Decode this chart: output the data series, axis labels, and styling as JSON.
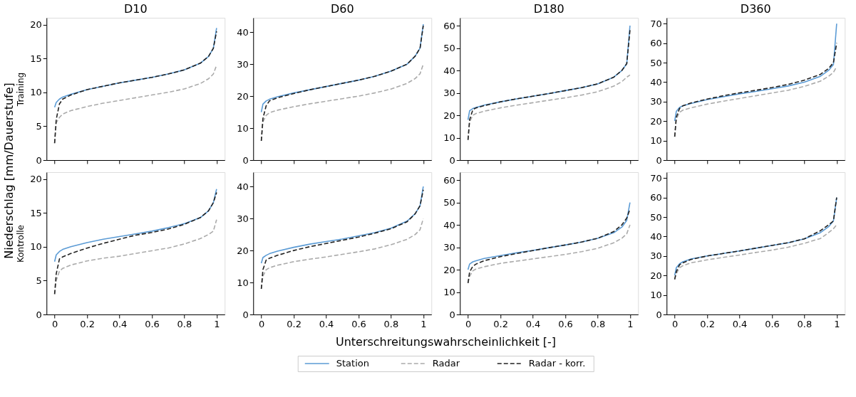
{
  "chart_data": [
    {
      "type": "line",
      "title": "D10",
      "ylabel": "Training",
      "annotations": [
        "Niederschlag [mm/Dauerstufe]",
        "Unterschreitungswahrscheinlichkeit [-]"
      ],
      "legend": "bottom",
      "tick_labels": "y",
      "x": [
        0,
        0.01,
        0.03,
        0.05,
        0.1,
        0.2,
        0.3,
        0.4,
        0.5,
        0.6,
        0.7,
        0.8,
        0.9,
        0.95,
        0.98,
        1
      ],
      "xlim": [
        -0.05,
        1.05
      ],
      "xticks": [
        0,
        0.2,
        0.4,
        0.6,
        0.8,
        1
      ],
      "ylim": [
        0,
        21
      ],
      "yticks": [
        0,
        5,
        10,
        15,
        20
      ],
      "series": [
        {
          "name": "Station",
          "color": "#5b9bd5",
          "line_style": "solid",
          "values": [
            7.8,
            8.5,
            9.0,
            9.3,
            9.7,
            10.4,
            10.9,
            11.4,
            11.8,
            12.2,
            12.7,
            13.3,
            14.3,
            15.3,
            16.5,
            19.5
          ]
        },
        {
          "name": "Radar",
          "color": "#aaaaaa",
          "line_style": "dashed",
          "values": [
            2.5,
            5.5,
            6.3,
            6.8,
            7.3,
            7.9,
            8.4,
            8.8,
            9.2,
            9.6,
            10.0,
            10.5,
            11.3,
            12.0,
            12.7,
            14.0
          ]
        },
        {
          "name": "Radar - korr.",
          "color": "#222222",
          "line_style": "dashed",
          "values": [
            2.5,
            6.0,
            8.3,
            9.0,
            9.6,
            10.4,
            10.9,
            11.4,
            11.8,
            12.2,
            12.7,
            13.3,
            14.3,
            15.3,
            16.5,
            19.0
          ]
        }
      ]
    },
    {
      "type": "line",
      "title": "D60",
      "tick_labels": "y",
      "x": [
        0,
        0.01,
        0.03,
        0.05,
        0.1,
        0.2,
        0.3,
        0.4,
        0.5,
        0.6,
        0.7,
        0.8,
        0.9,
        0.95,
        0.98,
        1
      ],
      "xlim": [
        -0.05,
        1.05
      ],
      "xticks": [
        0,
        0.2,
        0.4,
        0.6,
        0.8,
        1
      ],
      "ylim": [
        0,
        44.5
      ],
      "yticks": [
        0,
        10,
        20,
        30,
        40
      ],
      "series": [
        {
          "name": "Station",
          "color": "#5b9bd5",
          "line_style": "solid",
          "values": [
            15,
            17.5,
            18.5,
            19.0,
            19.8,
            21.0,
            22.0,
            23.0,
            24.0,
            25.0,
            26.2,
            27.8,
            30.0,
            32.5,
            35,
            42.5
          ]
        },
        {
          "name": "Radar",
          "color": "#aaaaaa",
          "line_style": "dashed",
          "values": [
            6,
            12,
            14,
            14.8,
            15.6,
            16.7,
            17.6,
            18.4,
            19.2,
            20.0,
            21.0,
            22.2,
            24.0,
            25.5,
            27,
            30
          ]
        },
        {
          "name": "Radar - korr.",
          "color": "#222222",
          "line_style": "dashed",
          "values": [
            6,
            13,
            17,
            18.5,
            19.5,
            20.8,
            22.0,
            23.0,
            24.0,
            25.0,
            26.2,
            27.8,
            30.0,
            32.5,
            35,
            42
          ]
        }
      ]
    },
    {
      "type": "line",
      "title": "D180",
      "tick_labels": "y",
      "x": [
        0,
        0.01,
        0.03,
        0.05,
        0.1,
        0.2,
        0.3,
        0.4,
        0.5,
        0.6,
        0.7,
        0.8,
        0.9,
        0.95,
        0.98,
        1
      ],
      "xlim": [
        -0.05,
        1.05
      ],
      "xticks": [
        0,
        0.2,
        0.4,
        0.6,
        0.8,
        1
      ],
      "ylim": [
        0,
        63.5
      ],
      "yticks": [
        0,
        10,
        20,
        30,
        40,
        50,
        60
      ],
      "series": [
        {
          "name": "Station",
          "color": "#5b9bd5",
          "line_style": "solid",
          "values": [
            18,
            22,
            23,
            23.5,
            24.5,
            26.0,
            27.3,
            28.5,
            29.7,
            31.0,
            32.3,
            34,
            37,
            40,
            43,
            60
          ]
        },
        {
          "name": "Radar",
          "color": "#aaaaaa",
          "line_style": "dashed",
          "values": [
            9,
            17,
            20,
            20.8,
            21.8,
            23.3,
            24.5,
            25.6,
            26.7,
            27.8,
            29.0,
            30.5,
            33,
            35,
            37,
            38
          ]
        },
        {
          "name": "Radar - korr.",
          "color": "#222222",
          "line_style": "dashed",
          "values": [
            9,
            18,
            22.5,
            23.3,
            24.3,
            26.0,
            27.3,
            28.5,
            29.7,
            31.0,
            32.3,
            34,
            37,
            40,
            43,
            58
          ]
        }
      ]
    },
    {
      "type": "line",
      "title": "D360",
      "tick_labels": "y",
      "x": [
        0,
        0.01,
        0.03,
        0.05,
        0.1,
        0.2,
        0.3,
        0.4,
        0.5,
        0.6,
        0.7,
        0.8,
        0.9,
        0.95,
        0.98,
        1
      ],
      "xlim": [
        -0.05,
        1.05
      ],
      "xticks": [
        0,
        0.2,
        0.4,
        0.6,
        0.8,
        1
      ],
      "ylim": [
        0,
        73
      ],
      "yticks": [
        0,
        10,
        20,
        30,
        40,
        50,
        60,
        70
      ],
      "series": [
        {
          "name": "Station",
          "color": "#5b9bd5",
          "line_style": "solid",
          "values": [
            20,
            25,
            27,
            27.8,
            29,
            31,
            32.5,
            34,
            35.2,
            36.6,
            38,
            40,
            43,
            46,
            49,
            70
          ]
        },
        {
          "name": "Radar",
          "color": "#aaaaaa",
          "line_style": "dashed",
          "values": [
            12,
            21,
            24.5,
            25.6,
            26.8,
            28.7,
            30.2,
            31.6,
            33,
            34.4,
            35.8,
            37.8,
            40.5,
            43,
            45,
            48
          ]
        },
        {
          "name": "Radar - korr.",
          "color": "#222222",
          "line_style": "dashed",
          "values": [
            12,
            22,
            26.5,
            27.8,
            29.3,
            31.3,
            33,
            34.5,
            35.8,
            37.2,
            38.8,
            41,
            44,
            47,
            50,
            60
          ]
        }
      ]
    },
    {
      "type": "line",
      "ylabel": "Kontrolle",
      "x": [
        0,
        0.01,
        0.03,
        0.05,
        0.1,
        0.2,
        0.3,
        0.4,
        0.5,
        0.6,
        0.7,
        0.8,
        0.9,
        0.95,
        0.98,
        1
      ],
      "xlim": [
        -0.05,
        1.05
      ],
      "xticks": [
        0,
        0.2,
        0.4,
        0.6,
        0.8,
        1
      ],
      "ylim": [
        0,
        21
      ],
      "yticks": [
        0,
        5,
        10,
        15,
        20
      ],
      "series": [
        {
          "name": "Station",
          "color": "#5b9bd5",
          "line_style": "solid",
          "values": [
            7.8,
            8.8,
            9.3,
            9.6,
            10.0,
            10.6,
            11.1,
            11.5,
            11.9,
            12.3,
            12.8,
            13.4,
            14.3,
            15.3,
            16.5,
            18.5
          ]
        },
        {
          "name": "Radar",
          "color": "#aaaaaa",
          "line_style": "dashed",
          "values": [
            3,
            5,
            6.4,
            6.8,
            7.3,
            7.9,
            8.3,
            8.6,
            9.0,
            9.4,
            9.8,
            10.4,
            11.2,
            11.8,
            12.3,
            14.0
          ]
        },
        {
          "name": "Radar - korr.",
          "color": "#222222",
          "line_style": "dashed",
          "values": [
            3,
            6,
            8.2,
            8.5,
            9.0,
            9.8,
            10.5,
            11.1,
            11.7,
            12.1,
            12.6,
            13.3,
            14.3,
            15.3,
            16.5,
            18.0
          ]
        }
      ]
    },
    {
      "type": "line",
      "x": [
        0,
        0.01,
        0.03,
        0.05,
        0.1,
        0.2,
        0.3,
        0.4,
        0.5,
        0.6,
        0.7,
        0.8,
        0.9,
        0.95,
        0.98,
        1
      ],
      "xlim": [
        -0.05,
        1.05
      ],
      "xticks": [
        0,
        0.2,
        0.4,
        0.6,
        0.8,
        1
      ],
      "ylim": [
        0,
        44.5
      ],
      "yticks": [
        0,
        10,
        20,
        30,
        40
      ],
      "series": [
        {
          "name": "Station",
          "color": "#5b9bd5",
          "line_style": "solid",
          "values": [
            16,
            17.8,
            18.5,
            19.0,
            19.8,
            21.0,
            22.0,
            22.8,
            23.6,
            24.6,
            25.6,
            27,
            29.2,
            31.5,
            34,
            40
          ]
        },
        {
          "name": "Radar",
          "color": "#aaaaaa",
          "line_style": "dashed",
          "values": [
            8,
            12,
            14,
            14.6,
            15.4,
            16.5,
            17.3,
            18.0,
            18.8,
            19.6,
            20.5,
            21.8,
            23.5,
            25,
            26.5,
            30
          ]
        },
        {
          "name": "Radar - korr.",
          "color": "#222222",
          "line_style": "dashed",
          "values": [
            8,
            14,
            17,
            17.6,
            18.5,
            20.0,
            21.2,
            22.2,
            23.2,
            24.2,
            25.4,
            26.8,
            29,
            31.5,
            34,
            39
          ]
        }
      ]
    },
    {
      "type": "line",
      "x": [
        0,
        0.01,
        0.03,
        0.05,
        0.1,
        0.2,
        0.3,
        0.4,
        0.5,
        0.6,
        0.7,
        0.8,
        0.9,
        0.95,
        0.98,
        1
      ],
      "xlim": [
        -0.05,
        1.05
      ],
      "xticks": [
        0,
        0.2,
        0.4,
        0.6,
        0.8,
        1
      ],
      "ylim": [
        0,
        63.5
      ],
      "yticks": [
        0,
        10,
        20,
        30,
        40,
        50,
        60
      ],
      "series": [
        {
          "name": "Station",
          "color": "#5b9bd5",
          "line_style": "solid",
          "values": [
            20,
            22.5,
            23.5,
            24,
            25,
            26.3,
            27.5,
            28.6,
            29.8,
            31,
            32.3,
            34,
            36.5,
            39,
            42,
            50
          ]
        },
        {
          "name": "Radar",
          "color": "#aaaaaa",
          "line_style": "dashed",
          "values": [
            14,
            17,
            19.5,
            20.3,
            21.3,
            22.8,
            23.8,
            24.8,
            25.8,
            26.8,
            28,
            29.5,
            32,
            34,
            36,
            40
          ]
        },
        {
          "name": "Radar - korr.",
          "color": "#222222",
          "line_style": "dashed",
          "values": [
            14,
            19,
            21.5,
            22.5,
            24,
            25.8,
            27.2,
            28.5,
            29.8,
            31,
            32.3,
            34,
            37,
            40,
            43,
            47
          ]
        }
      ]
    },
    {
      "type": "line",
      "x": [
        0,
        0.01,
        0.03,
        0.05,
        0.1,
        0.2,
        0.3,
        0.4,
        0.5,
        0.6,
        0.7,
        0.8,
        0.9,
        0.95,
        0.98,
        1
      ],
      "xlim": [
        -0.05,
        1.05
      ],
      "xticks": [
        0,
        0.2,
        0.4,
        0.6,
        0.8,
        1
      ],
      "ylim": [
        0,
        73
      ],
      "yticks": [
        0,
        10,
        20,
        30,
        40,
        50,
        60,
        70
      ],
      "series": [
        {
          "name": "Station",
          "color": "#5b9bd5",
          "line_style": "solid",
          "values": [
            20,
            24,
            26,
            27,
            28.5,
            30,
            31.3,
            32.6,
            34,
            35.4,
            36.8,
            38.8,
            42,
            45,
            48,
            60
          ]
        },
        {
          "name": "Radar",
          "color": "#aaaaaa",
          "line_style": "dashed",
          "values": [
            18,
            21,
            24,
            25,
            26.5,
            28,
            29.3,
            30.5,
            31.8,
            33,
            34.5,
            36.5,
            39,
            42,
            44,
            46
          ]
        },
        {
          "name": "Radar - korr.",
          "color": "#222222",
          "line_style": "dashed",
          "values": [
            18,
            22,
            25.5,
            26.5,
            28.2,
            30,
            31.3,
            32.6,
            34,
            35.4,
            36.8,
            38.8,
            43,
            46,
            48,
            60
          ]
        }
      ]
    }
  ]
}
